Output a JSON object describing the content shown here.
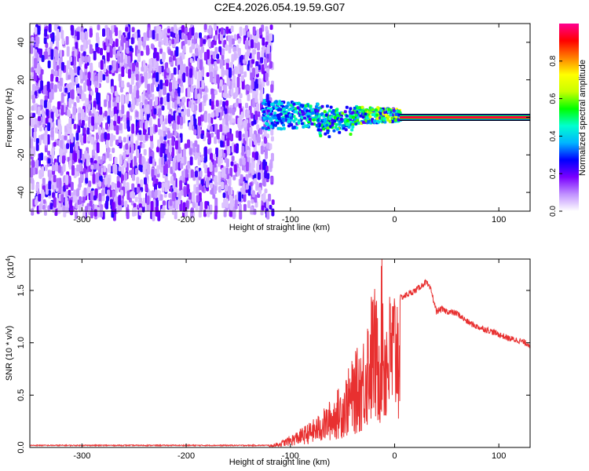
{
  "figure_title": "C2E4.2026.054.19.59.G07",
  "chart_data": [
    {
      "type": "heatmap",
      "title": "C2E4.2026.054.19.59.G07",
      "xlabel": "Height of straight line (km)",
      "ylabel": "Frequency (Hz)",
      "xlim": [
        -350,
        130
      ],
      "ylim": [
        -50,
        50
      ],
      "xticks": [
        -300,
        -200,
        -100,
        0,
        100
      ],
      "xtick_labels": [
        "-300",
        "-200",
        "-100",
        "0",
        "100"
      ],
      "yticks": [
        -40,
        -20,
        0,
        20,
        40
      ],
      "ytick_labels": [
        "-40",
        "-20",
        "0",
        "20",
        "40"
      ],
      "colorbar": {
        "label": "Normalized spectral amplitude",
        "range": [
          0,
          1
        ],
        "ticks": [
          0.0,
          0.2,
          0.4,
          0.6,
          0.8
        ],
        "tick_labels": [
          "0.0",
          "0.2",
          "0.4",
          "0.6",
          "0.8"
        ],
        "colormap": [
          "#ffffff",
          "#c090ff",
          "#7a00ff",
          "#0000ff",
          "#00b4ff",
          "#00ffd0",
          "#00ff00",
          "#c8ff00",
          "#ffff00",
          "#ff8000",
          "#ff0000",
          "#ff0090"
        ]
      },
      "regions": [
        {
          "name": "noise",
          "x": [
            -350,
            -118
          ],
          "y": [
            -50,
            50
          ],
          "amplitude": [
            0.05,
            0.25
          ]
        },
        {
          "name": "transition",
          "x": [
            -128,
            5
          ],
          "y": [
            -8,
            8
          ],
          "center_y": 2,
          "amplitude": [
            0.2,
            0.7
          ]
        },
        {
          "name": "signal_line",
          "x": [
            5,
            130
          ],
          "y": [
            -1,
            1
          ],
          "center_y": 0,
          "amplitude": 0.95
        }
      ]
    },
    {
      "type": "line",
      "xlabel": "Height of straight line (km)",
      "ylabel": "SNR (10 * v/v)",
      "y_multiplier": "(x10",
      "y_multiplier_exp": "4",
      "y_multiplier_close": ")",
      "xlim": [
        -350,
        130
      ],
      "ylim": [
        0,
        1.8
      ],
      "xticks": [
        -300,
        -200,
        -100,
        0,
        100
      ],
      "xtick_labels": [
        "-300",
        "-200",
        "-100",
        "0",
        "100"
      ],
      "yticks": [
        0.0,
        0.5,
        1.0,
        1.5
      ],
      "ytick_labels": [
        "0.0",
        "0.5",
        "1.0",
        "1.5"
      ],
      "color": "#e83030",
      "series": [
        {
          "name": "SNR",
          "envelope": {
            "x": [
              -350,
              -120,
              -110,
              -100,
              -90,
              -80,
              -70,
              -60,
              -50,
              -40,
              -30,
              -25,
              -20,
              -15,
              -12,
              -10,
              -5,
              0,
              10,
              20,
              30,
              35,
              40,
              45,
              50,
              60,
              70,
              80,
              90,
              100,
              110,
              120,
              130
            ],
            "y": [
              0.02,
              0.02,
              0.05,
              0.1,
              0.16,
              0.22,
              0.3,
              0.42,
              0.55,
              0.75,
              0.95,
              1.2,
              1.4,
              1.15,
              1.8,
              1.2,
              1.3,
              1.4,
              1.45,
              1.5,
              1.58,
              1.5,
              1.3,
              1.32,
              1.3,
              1.28,
              1.2,
              1.15,
              1.12,
              1.08,
              1.04,
              1.02,
              0.98
            ]
          }
        }
      ]
    }
  ]
}
